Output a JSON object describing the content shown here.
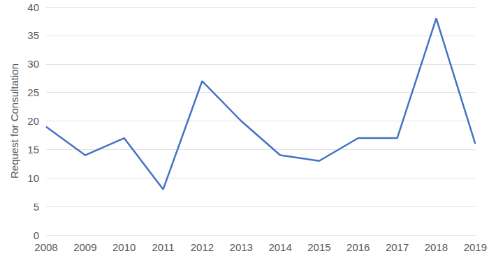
{
  "chart_data": {
    "type": "line",
    "y_label": "Request for Consultation",
    "categories": [
      "2008",
      "2009",
      "2010",
      "2011",
      "2012",
      "2013",
      "2014",
      "2015",
      "2016",
      "2017",
      "2018",
      "2019"
    ],
    "values": [
      19,
      14,
      17,
      8,
      27,
      20,
      14,
      13,
      17,
      17,
      38,
      16
    ],
    "color": "#4472c4",
    "ylim": [
      0,
      40
    ],
    "yticks": [
      0,
      5,
      10,
      15,
      20,
      25,
      30,
      35,
      40
    ],
    "grid": true
  }
}
